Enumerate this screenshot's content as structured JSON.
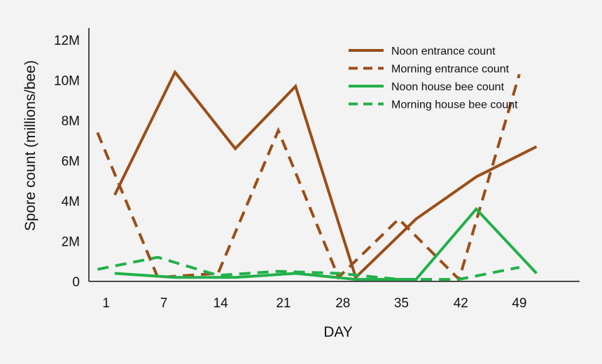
{
  "chart_data": {
    "type": "line",
    "xlabel": "DAY",
    "ylabel": "Spore count (millions/bee)",
    "x_ticks": [
      "1",
      "7",
      "14",
      "21",
      "28",
      "35",
      "42",
      "49"
    ],
    "y_ticks": [
      {
        "value": 0,
        "label": "0"
      },
      {
        "value": 2,
        "label": "2M"
      },
      {
        "value": 4,
        "label": "4M"
      },
      {
        "value": 6,
        "label": "6M"
      },
      {
        "value": 8,
        "label": "8M"
      },
      {
        "value": 10,
        "label": "10M"
      },
      {
        "value": 12,
        "label": "12M"
      }
    ],
    "xlim": [
      0,
      57
    ],
    "ylim": [
      0,
      12.6
    ],
    "grid": false,
    "legend_position": "top-right",
    "series": [
      {
        "name": "Noon entrance count",
        "color": "#9a4e17",
        "dashed": false,
        "x": [
          3,
          10,
          17,
          24,
          31,
          38,
          45,
          52
        ],
        "y": [
          4.3,
          10.4,
          6.6,
          9.7,
          0.2,
          3.1,
          5.2,
          6.7
        ]
      },
      {
        "name": "Morning entrance count",
        "color": "#9a4e17",
        "dashed": true,
        "x": [
          1,
          8,
          15,
          22,
          29,
          36,
          43,
          50
        ],
        "y": [
          7.4,
          0.2,
          0.4,
          7.5,
          0.2,
          3.1,
          0.1,
          10.3
        ]
      },
      {
        "name": "Noon house bee count",
        "color": "#22b04a",
        "dashed": false,
        "x": [
          3,
          10,
          17,
          24,
          31,
          38,
          45,
          52
        ],
        "y": [
          0.4,
          0.2,
          0.2,
          0.4,
          0.1,
          0.1,
          3.6,
          0.4
        ]
      },
      {
        "name": "Morning house bee count",
        "color": "#22b04a",
        "dashed": true,
        "x": [
          1,
          8,
          15,
          22,
          29,
          36,
          43,
          50
        ],
        "y": [
          0.6,
          1.2,
          0.3,
          0.5,
          0.4,
          0.1,
          0.1,
          0.7
        ]
      }
    ]
  }
}
